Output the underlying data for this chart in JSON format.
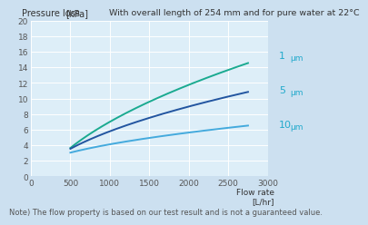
{
  "title_left": "Pressure loss",
  "title_left_unit": "[kPa]",
  "title_right": "With overall length of 254 mm and for pure water at 22°C",
  "xlabel_line1": "Flow rate",
  "xlabel_line2": "[L/hr]",
  "note": "Note) The flow property is based on our test result and is not a guaranteed value.",
  "xlim": [
    0,
    3000
  ],
  "ylim": [
    0,
    20
  ],
  "xticks": [
    0,
    500,
    1000,
    1500,
    2000,
    2500,
    3000
  ],
  "yticks": [
    0,
    2,
    4,
    6,
    8,
    10,
    12,
    14,
    16,
    18,
    20
  ],
  "outer_bg": "#cce0f0",
  "plot_bg": "#ddeef8",
  "lines": [
    {
      "label": "1",
      "unit": "μm",
      "x": [
        500,
        1000,
        1500,
        2000,
        2500,
        2750
      ],
      "y": [
        4.5,
        6.5,
        8.8,
        11.2,
        13.7,
        15.5
      ],
      "color": "#1aaa90",
      "linewidth": 1.4
    },
    {
      "label": "5",
      "unit": "μm",
      "x": [
        500,
        1000,
        1500,
        2000,
        2500,
        2750
      ],
      "y": [
        3.9,
        5.5,
        7.2,
        8.9,
        10.3,
        11.1
      ],
      "color": "#2255a0",
      "linewidth": 1.4
    },
    {
      "label": "10",
      "unit": "μm",
      "x": [
        500,
        1000,
        1500,
        2000,
        2500,
        2750
      ],
      "y": [
        3.2,
        4.0,
        4.8,
        5.6,
        6.3,
        6.6
      ],
      "color": "#44aadd",
      "linewidth": 1.4
    }
  ],
  "label_number_color": "#22aacc",
  "label_unit_color": "#22aacc",
  "title_color": "#333333",
  "tick_color": "#555555",
  "title_fontsize": 7.0,
  "tick_fontsize": 6.5,
  "note_fontsize": 6.0,
  "label_num_fontsize": 8.0,
  "label_unit_fontsize": 6.5
}
